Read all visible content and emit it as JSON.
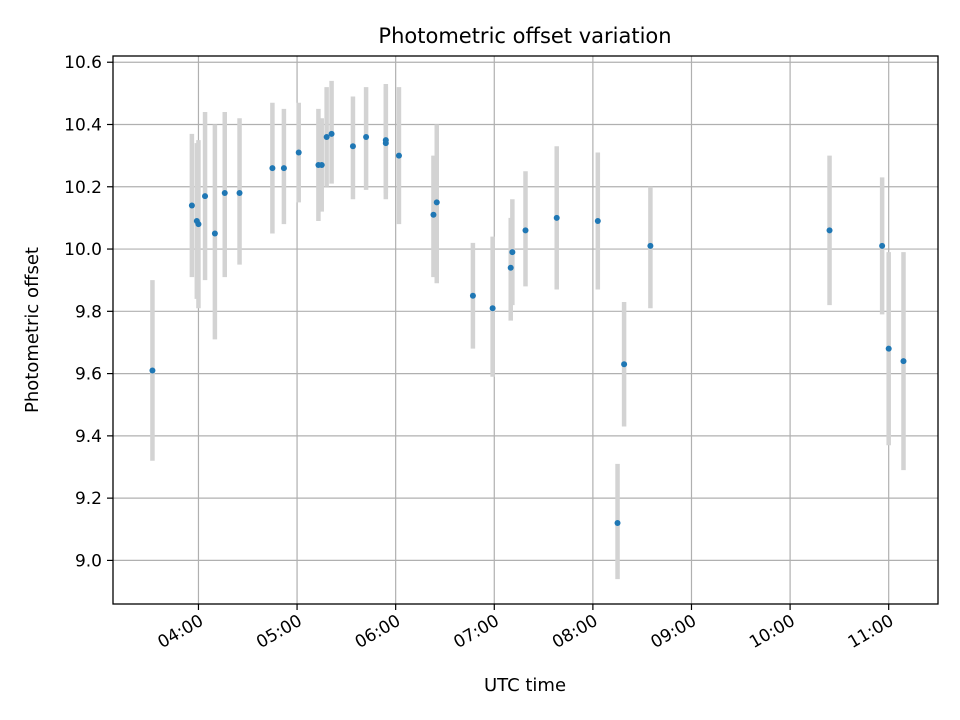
{
  "chart_data": {
    "type": "scatter",
    "title": "Photometric offset variation",
    "xlabel": "UTC time",
    "ylabel": "Photometric offset",
    "x_unit": "UTC time (HH:MM)",
    "xlim": [
      "03:08",
      "11:30"
    ],
    "ylim": [
      8.86,
      10.62
    ],
    "grid": true,
    "x_tick_labels": [
      "04:00",
      "05:00",
      "06:00",
      "07:00",
      "08:00",
      "09:00",
      "10:00",
      "11:00"
    ],
    "y_tick_labels": [
      "9.0",
      "9.2",
      "9.4",
      "9.6",
      "9.8",
      "10.0",
      "10.2",
      "10.4",
      "10.6"
    ],
    "errorbar_color": "#d3d3d3",
    "marker_color": "#1f77b4",
    "series": [
      {
        "points": [
          {
            "x": "03:32",
            "y": 9.61,
            "yerr_low": 9.32,
            "yerr_high": 9.9
          },
          {
            "x": "03:56",
            "y": 10.14,
            "yerr_low": 9.91,
            "yerr_high": 10.37
          },
          {
            "x": "03:59",
            "y": 10.09,
            "yerr_low": 9.84,
            "yerr_high": 10.34
          },
          {
            "x": "04:00",
            "y": 10.08,
            "yerr_low": 9.81,
            "yerr_high": 10.35
          },
          {
            "x": "04:04",
            "y": 10.17,
            "yerr_low": 9.9,
            "yerr_high": 10.44
          },
          {
            "x": "04:10",
            "y": 10.05,
            "yerr_low": 9.71,
            "yerr_high": 10.4
          },
          {
            "x": "04:16",
            "y": 10.18,
            "yerr_low": 9.91,
            "yerr_high": 10.44
          },
          {
            "x": "04:25",
            "y": 10.18,
            "yerr_low": 9.95,
            "yerr_high": 10.42
          },
          {
            "x": "04:45",
            "y": 10.26,
            "yerr_low": 10.05,
            "yerr_high": 10.47
          },
          {
            "x": "04:52",
            "y": 10.26,
            "yerr_low": 10.08,
            "yerr_high": 10.45
          },
          {
            "x": "05:01",
            "y": 10.31,
            "yerr_low": 10.15,
            "yerr_high": 10.47
          },
          {
            "x": "05:13",
            "y": 10.27,
            "yerr_low": 10.09,
            "yerr_high": 10.45
          },
          {
            "x": "05:15",
            "y": 10.27,
            "yerr_low": 10.12,
            "yerr_high": 10.42
          },
          {
            "x": "05:18",
            "y": 10.36,
            "yerr_low": 10.2,
            "yerr_high": 10.52
          },
          {
            "x": "05:21",
            "y": 10.37,
            "yerr_low": 10.21,
            "yerr_high": 10.54
          },
          {
            "x": "05:34",
            "y": 10.33,
            "yerr_low": 10.16,
            "yerr_high": 10.49
          },
          {
            "x": "05:42",
            "y": 10.36,
            "yerr_low": 10.19,
            "yerr_high": 10.52
          },
          {
            "x": "05:54",
            "y": 10.34,
            "yerr_low": 10.16,
            "yerr_high": 10.53
          },
          {
            "x": "05:54",
            "y": 10.35,
            "yerr_low": 10.18,
            "yerr_high": 10.52
          },
          {
            "x": "06:02",
            "y": 10.3,
            "yerr_low": 10.08,
            "yerr_high": 10.52
          },
          {
            "x": "06:23",
            "y": 10.11,
            "yerr_low": 9.91,
            "yerr_high": 10.3
          },
          {
            "x": "06:25",
            "y": 10.15,
            "yerr_low": 9.89,
            "yerr_high": 10.4
          },
          {
            "x": "06:47",
            "y": 9.85,
            "yerr_low": 9.68,
            "yerr_high": 10.02
          },
          {
            "x": "06:59",
            "y": 9.81,
            "yerr_low": 9.59,
            "yerr_high": 10.04
          },
          {
            "x": "07:10",
            "y": 9.94,
            "yerr_low": 9.77,
            "yerr_high": 10.1
          },
          {
            "x": "07:11",
            "y": 9.99,
            "yerr_low": 9.82,
            "yerr_high": 10.16
          },
          {
            "x": "07:19",
            "y": 10.06,
            "yerr_low": 9.88,
            "yerr_high": 10.25
          },
          {
            "x": "07:38",
            "y": 10.1,
            "yerr_low": 9.87,
            "yerr_high": 10.33
          },
          {
            "x": "08:03",
            "y": 10.09,
            "yerr_low": 9.87,
            "yerr_high": 10.31
          },
          {
            "x": "08:15",
            "y": 9.12,
            "yerr_low": 8.94,
            "yerr_high": 9.31
          },
          {
            "x": "08:19",
            "y": 9.63,
            "yerr_low": 9.43,
            "yerr_high": 9.83
          },
          {
            "x": "08:35",
            "y": 10.01,
            "yerr_low": 9.81,
            "yerr_high": 10.2
          },
          {
            "x": "10:24",
            "y": 10.06,
            "yerr_low": 9.82,
            "yerr_high": 10.3
          },
          {
            "x": "10:56",
            "y": 10.01,
            "yerr_low": 9.79,
            "yerr_high": 10.23
          },
          {
            "x": "11:00",
            "y": 9.68,
            "yerr_low": 9.37,
            "yerr_high": 9.99
          },
          {
            "x": "11:09",
            "y": 9.64,
            "yerr_low": 9.29,
            "yerr_high": 9.99
          }
        ]
      }
    ]
  }
}
